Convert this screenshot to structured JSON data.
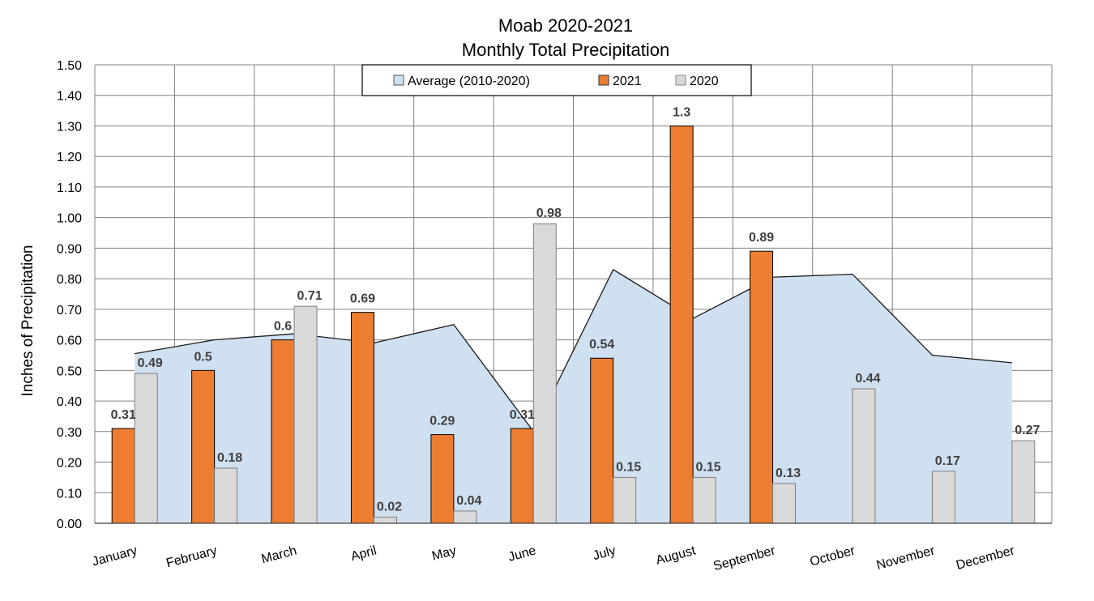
{
  "chart_data": {
    "type": "bar",
    "title": "Moab 2020-2021",
    "subtitle": "Monthly Total Precipitation",
    "ylabel": "Inches of Precipitation",
    "xlabel": "",
    "ylim": [
      0,
      1.5
    ],
    "ytick_step": 0.1,
    "grid": true,
    "legend_position": "top-center",
    "categories": [
      "January",
      "February",
      "March",
      "April",
      "May",
      "June",
      "July",
      "August",
      "September",
      "October",
      "November",
      "December"
    ],
    "series": [
      {
        "name": "Average (2010-2020)",
        "kind": "area",
        "color": "#cfe0f1",
        "line_color": "#1a1a1a",
        "values": [
          0.555,
          0.6,
          0.62,
          0.59,
          0.65,
          0.3,
          0.83,
          0.67,
          0.805,
          0.815,
          0.55,
          0.525
        ]
      },
      {
        "name": "2021",
        "kind": "bar",
        "color": "#ed7d31",
        "values": [
          0.31,
          0.5,
          0.6,
          0.69,
          0.29,
          0.31,
          0.54,
          1.3,
          0.89,
          null,
          null,
          null
        ],
        "labels": [
          "0.31",
          "0.5",
          "0.6",
          "0.69",
          "0.29",
          "0.31",
          "0.54",
          "1.3",
          "0.89",
          "",
          "",
          ""
        ]
      },
      {
        "name": "2020",
        "kind": "bar",
        "color": "#d9d9d9",
        "values": [
          0.49,
          0.18,
          0.71,
          0.02,
          0.04,
          0.98,
          0.15,
          0.15,
          0.13,
          0.44,
          0.17,
          0.27
        ],
        "labels": [
          "0.49",
          "0.18",
          "0.71",
          "0.02",
          "0.04",
          "0.98",
          "0.15",
          "0.15",
          "0.13",
          "0.44",
          "0.17",
          "0.27"
        ]
      }
    ]
  }
}
